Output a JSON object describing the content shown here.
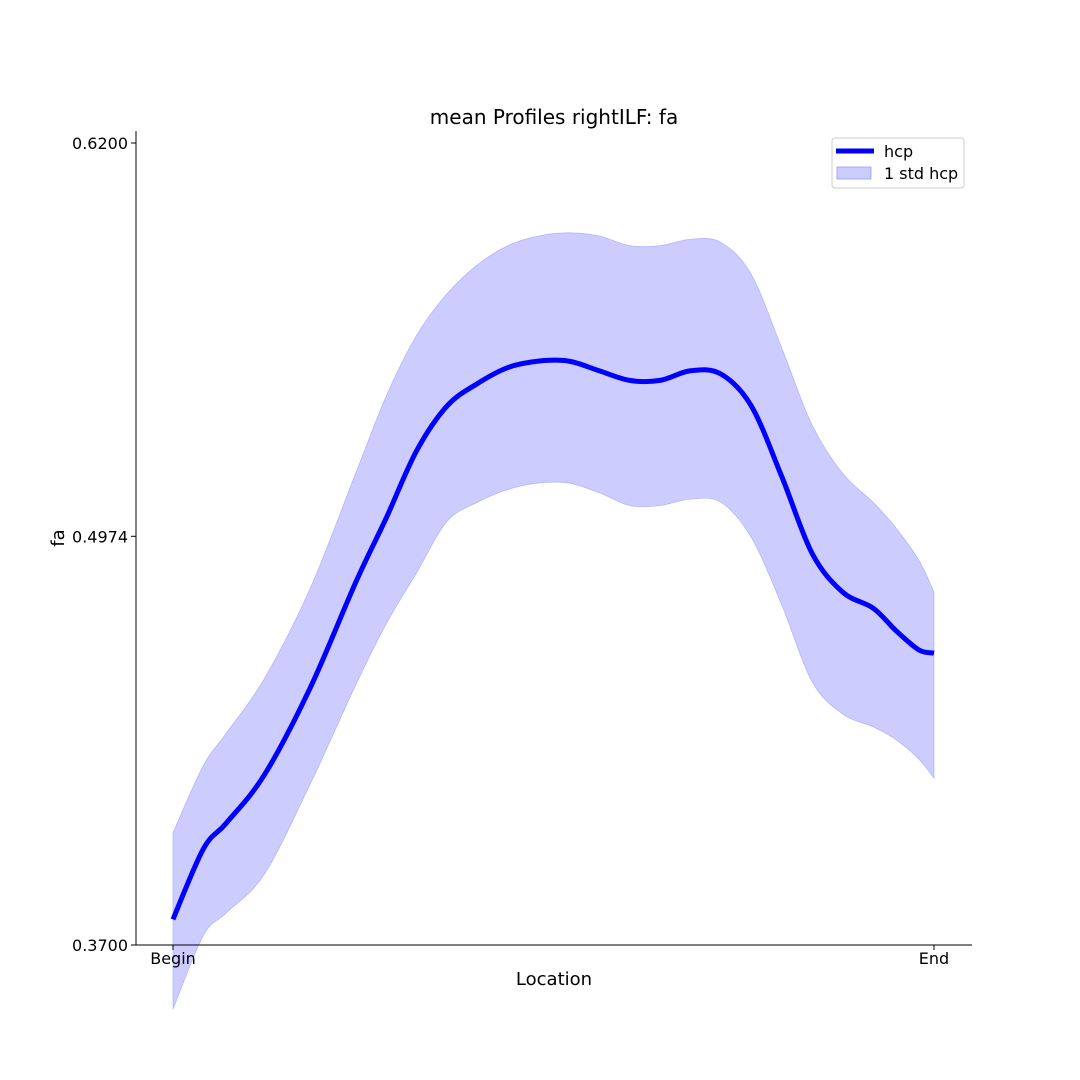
{
  "chart_data": {
    "type": "line",
    "title": "mean Profiles rightILF: fa",
    "xlabel": "Location",
    "ylabel": "fa",
    "x_tick_labels": [
      "Begin",
      "End"
    ],
    "y_ticks": [
      0.37,
      0.4974,
      0.62
    ],
    "y_tick_labels": [
      "0.3700",
      "0.4974",
      "0.6200"
    ],
    "ylim": [
      0.37,
      0.62
    ],
    "xlim": [
      0,
      100
    ],
    "legend_position": "upper-right",
    "grid": false,
    "series": [
      {
        "name": "hcp",
        "kind": "mean",
        "color": "#0000ff",
        "x": [
          0,
          4,
          7,
          12,
          18,
          24,
          28,
          32,
          36,
          40,
          44,
          48,
          52,
          56,
          60,
          64,
          68,
          72,
          76,
          80,
          84,
          88,
          92,
          95,
          98,
          100
        ],
        "values": [
          0.378,
          0.4,
          0.408,
          0.423,
          0.45,
          0.483,
          0.503,
          0.524,
          0.538,
          0.545,
          0.55,
          0.552,
          0.552,
          0.549,
          0.546,
          0.546,
          0.549,
          0.548,
          0.538,
          0.516,
          0.492,
          0.48,
          0.475,
          0.468,
          0.462,
          0.461
        ]
      },
      {
        "name": "1 std hcp",
        "kind": "band",
        "color": "#ccccff",
        "x": [
          0,
          4,
          7,
          12,
          18,
          24,
          28,
          32,
          36,
          40,
          44,
          48,
          52,
          56,
          60,
          64,
          68,
          72,
          76,
          80,
          84,
          88,
          92,
          95,
          98,
          100
        ],
        "upper": [
          0.405,
          0.426,
          0.436,
          0.453,
          0.481,
          0.517,
          0.541,
          0.56,
          0.573,
          0.582,
          0.588,
          0.591,
          0.592,
          0.591,
          0.588,
          0.588,
          0.59,
          0.589,
          0.579,
          0.556,
          0.532,
          0.517,
          0.508,
          0.5,
          0.49,
          0.48
        ],
        "lower": [
          0.35,
          0.373,
          0.38,
          0.392,
          0.42,
          0.451,
          0.47,
          0.486,
          0.502,
          0.508,
          0.512,
          0.514,
          0.514,
          0.511,
          0.507,
          0.507,
          0.509,
          0.508,
          0.497,
          0.476,
          0.452,
          0.442,
          0.438,
          0.434,
          0.428,
          0.422
        ]
      }
    ]
  }
}
